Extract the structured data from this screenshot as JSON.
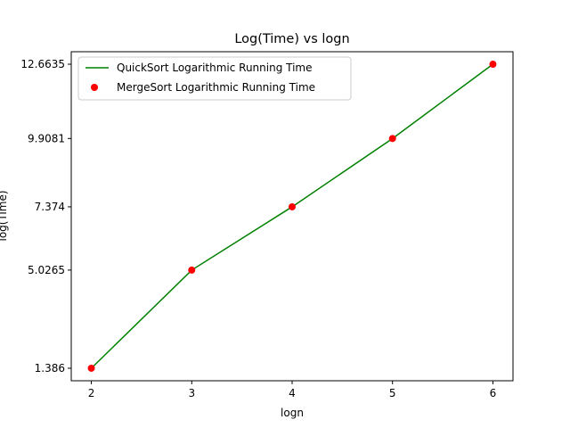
{
  "chart_data": {
    "type": "line",
    "title": "Log(Time) vs logn",
    "xlabel": "logn",
    "ylabel": "log(Time)",
    "x": [
      2,
      3,
      4,
      5,
      6
    ],
    "xlim": [
      1.8,
      6.2
    ],
    "ylim": [
      0.9222,
      13.1273
    ],
    "x_ticks": [
      2,
      3,
      4,
      5,
      6
    ],
    "y_ticks": [
      {
        "value": 1.386,
        "label": "1.386"
      },
      {
        "value": 5.0265,
        "label": "5.0265"
      },
      {
        "value": 7.374,
        "label": "7.374"
      },
      {
        "value": 9.9081,
        "label": "9.9081"
      },
      {
        "value": 12.6635,
        "label": "12.6635"
      }
    ],
    "grid": false,
    "legend_position": "upper-left",
    "series": [
      {
        "name": "QuickSort Logarithmic Running Time",
        "style": "line",
        "color": "#008000",
        "values": [
          1.386,
          5.0265,
          7.374,
          9.9081,
          12.6635
        ]
      },
      {
        "name": "MergeSort Logarithmic Running Time",
        "style": "scatter",
        "color": "#ff0000",
        "values": [
          1.386,
          5.0265,
          7.374,
          9.9081,
          12.6635
        ]
      }
    ]
  }
}
